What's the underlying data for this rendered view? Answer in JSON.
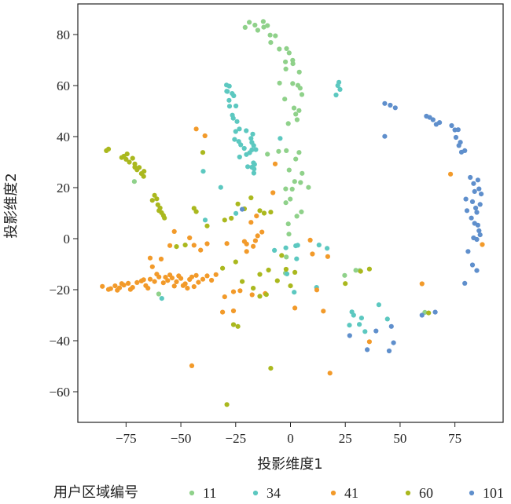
{
  "chart_data": {
    "type": "scatter",
    "xlabel": "投影维度1",
    "ylabel": "投影维度2",
    "xlim": [
      -97,
      97
    ],
    "ylim": [
      -72,
      92
    ],
    "xticks": [
      -75,
      -50,
      -25,
      0,
      25,
      50,
      75
    ],
    "yticks": [
      -60,
      -40,
      -20,
      0,
      20,
      40,
      60,
      80
    ],
    "xtick_labels": [
      "−75",
      "−50",
      "−25",
      "0",
      "25",
      "50",
      "75"
    ],
    "ytick_labels": [
      "−60",
      "−40",
      "−20",
      "0",
      "20",
      "40",
      "60",
      "80"
    ],
    "grid": false,
    "legend": {
      "title": "用户区域编号",
      "placement": "bottom"
    },
    "series": [
      {
        "name": "11",
        "color": "#8fd18a",
        "points": [
          [
            -10.5,
            83.5
          ],
          [
            -14.9,
            81.7
          ],
          [
            -16.2,
            83.7
          ],
          [
            -9.3,
            79.8
          ],
          [
            -20.7,
            82.8
          ],
          [
            -12.4,
            85.1
          ],
          [
            -0.6,
            72.8
          ],
          [
            1.0,
            69.9
          ],
          [
            -1.8,
            74.5
          ],
          [
            -9.0,
            76.9
          ],
          [
            1.1,
            68.6
          ],
          [
            4.4,
            59.0
          ],
          [
            3.9,
            50.2
          ],
          [
            -2.1,
            66.5
          ],
          [
            -6.9,
            79.5
          ],
          [
            -5.1,
            74.3
          ],
          [
            -2.3,
            69.3
          ],
          [
            5.2,
            56.5
          ],
          [
            1.6,
            51.2
          ],
          [
            4.0,
            65.3
          ],
          [
            3.4,
            60.1
          ],
          [
            -12.2,
            82.9
          ],
          [
            -18.8,
            84.8
          ],
          [
            -2.6,
            54.7
          ],
          [
            -5.0,
            61.0
          ],
          [
            1.0,
            60.8
          ],
          [
            3.0,
            46.6
          ],
          [
            2.4,
            48.8
          ],
          [
            3.9,
            33.8
          ],
          [
            -1.9,
            34.5
          ],
          [
            -5.4,
            34.2
          ],
          [
            -1.0,
            45.1
          ],
          [
            5.3,
            25.6
          ],
          [
            2.4,
            31.2
          ],
          [
            -0.6,
            26.9
          ],
          [
            4.6,
            22.0
          ],
          [
            1.9,
            22.4
          ],
          [
            -2.2,
            19.5
          ],
          [
            -2.1,
            14.1
          ],
          [
            -0.1,
            15.5
          ],
          [
            8.2,
            20.1
          ],
          [
            0.8,
            19.4
          ],
          [
            5.0,
            10.5
          ],
          [
            -1.0,
            5.8
          ],
          [
            2.9,
            8.8
          ],
          [
            -0.7,
            1.8
          ],
          [
            -1.9,
            -7.2
          ],
          [
            -2.3,
            -13.5
          ],
          [
            24.7,
            -14.4
          ],
          [
            31.6,
            -12.5
          ],
          [
            29.8,
            -12.4
          ],
          [
            61.3,
            -28.9
          ],
          [
            -60.1,
            -21.7
          ],
          [
            -71.2,
            22.4
          ],
          [
            -10.5,
            33.1
          ]
        ]
      },
      {
        "name": "34",
        "color": "#5cc8c0",
        "points": [
          [
            -29.2,
            60.2
          ],
          [
            -29.1,
            57.8
          ],
          [
            -28.0,
            54.2
          ],
          [
            -27.8,
            51.9
          ],
          [
            -26.5,
            48.4
          ],
          [
            -24.4,
            45.9
          ],
          [
            -25.0,
            42.0
          ],
          [
            -25.5,
            38.9
          ],
          [
            -23.6,
            38.1
          ],
          [
            -22.7,
            36.8
          ],
          [
            -18.6,
            33.7
          ],
          [
            -16.8,
            36.5
          ],
          [
            -15.8,
            34.9
          ],
          [
            -18.0,
            39.3
          ],
          [
            -17.2,
            41.0
          ],
          [
            -20.1,
            33.0
          ],
          [
            -19.5,
            28.2
          ],
          [
            -16.9,
            29.7
          ],
          [
            -17.6,
            28.0
          ],
          [
            -23.2,
            32.0
          ],
          [
            -17.6,
            34.8
          ],
          [
            -17.6,
            37.7
          ],
          [
            -25.9,
            56.0
          ],
          [
            -24.9,
            52.0
          ],
          [
            -26.6,
            56.9
          ],
          [
            -27.9,
            59.8
          ],
          [
            -20.2,
            42.3
          ],
          [
            -16.4,
            29.1
          ],
          [
            -16.7,
            25.7
          ],
          [
            -21.1,
            35.4
          ],
          [
            -16.6,
            27.3
          ],
          [
            -23.3,
            43.0
          ],
          [
            -28.8,
            57.7
          ],
          [
            -26.1,
            47.2
          ],
          [
            22.1,
            61.3
          ],
          [
            20.8,
            56.3
          ],
          [
            21.6,
            60.0
          ],
          [
            22.6,
            58.5
          ],
          [
            3.3,
            -2.6
          ],
          [
            13.0,
            -2.5
          ],
          [
            2.4,
            -2.8
          ],
          [
            -24.9,
            9.9
          ],
          [
            -4.7,
            39.3
          ],
          [
            -39.8,
            26.4
          ],
          [
            -31.8,
            20.1
          ],
          [
            -38.9,
            7.3
          ],
          [
            -58.7,
            -23.4
          ],
          [
            26.9,
            -33.9
          ],
          [
            28.8,
            -30.0
          ],
          [
            28.0,
            -28.7
          ],
          [
            31.4,
            -33.6
          ],
          [
            32.4,
            -31.1
          ],
          [
            40.3,
            -25.9
          ],
          [
            44.2,
            -31.5
          ],
          [
            34.0,
            -36.4
          ],
          [
            1.7,
            -21.0
          ],
          [
            -2.1,
            -3.6
          ],
          [
            2.8,
            -7.9
          ],
          [
            -7.3,
            -4.6
          ],
          [
            -1.6,
            -13.8
          ],
          [
            16.7,
            -3.8
          ],
          [
            11.9,
            -19.1
          ]
        ]
      },
      {
        "name": "41",
        "color": "#f29a2a",
        "points": [
          [
            -85.8,
            -18.7
          ],
          [
            -83.0,
            -19.9
          ],
          [
            -80.0,
            -18.5
          ],
          [
            -78.0,
            -19.3
          ],
          [
            -76.0,
            -18.2
          ],
          [
            -74.0,
            -17.5
          ],
          [
            -72.0,
            -19.1
          ],
          [
            -70.0,
            -17.2
          ],
          [
            -68.0,
            -16.6
          ],
          [
            -66.0,
            -18.4
          ],
          [
            -64.0,
            -15.9
          ],
          [
            -62.0,
            -16.8
          ],
          [
            -60.0,
            -15.0
          ],
          [
            -58.0,
            -17.3
          ],
          [
            -56.0,
            -16.4
          ],
          [
            -54.0,
            -15.4
          ],
          [
            -52.0,
            -16.9
          ],
          [
            -50.0,
            -15.6
          ],
          [
            -48.0,
            -17.7
          ],
          [
            -46.0,
            -16.0
          ],
          [
            -44.0,
            -18.8
          ],
          [
            -42.0,
            -17.1
          ],
          [
            -40.0,
            -15.9
          ],
          [
            -38.0,
            -14.6
          ],
          [
            -36.0,
            -16.3
          ],
          [
            -34.0,
            -14.1
          ],
          [
            -55.0,
            -14.2
          ],
          [
            -57.0,
            -15.1
          ],
          [
            -61.0,
            -13.9
          ],
          [
            -63.0,
            -11.0
          ],
          [
            -64.0,
            -7.6
          ],
          [
            -59.0,
            -8.0
          ],
          [
            -67.0,
            -16.1
          ],
          [
            -73.0,
            -19.9
          ],
          [
            -77.0,
            -17.6
          ],
          [
            -79.0,
            -20.2
          ],
          [
            -82.0,
            -19.6
          ],
          [
            -65.0,
            -19.4
          ],
          [
            -53.0,
            -18.6
          ],
          [
            -49.0,
            -18.4
          ],
          [
            -45.0,
            -15.0
          ],
          [
            -47.0,
            -19.4
          ],
          [
            -43.0,
            -14.4
          ],
          [
            -51.0,
            -14.6
          ],
          [
            -38.0,
            -2.0
          ],
          [
            -41.0,
            -4.5
          ],
          [
            -44.0,
            -2.6
          ],
          [
            -55.0,
            -2.7
          ],
          [
            -53.0,
            2.8
          ],
          [
            -46.0,
            0.3
          ],
          [
            -29.0,
            -1.9
          ],
          [
            -21.0,
            -1.1
          ],
          [
            -20.0,
            -2.1
          ],
          [
            -16.0,
            -0.8
          ],
          [
            -15.0,
            1.1
          ],
          [
            -17.0,
            -3.0
          ],
          [
            -20.0,
            -5.0
          ],
          [
            -13.0,
            2.6
          ],
          [
            -18.0,
            6.4
          ],
          [
            -15.5,
            8.9
          ],
          [
            -26.0,
            -20.8
          ],
          [
            -30.0,
            -22.8
          ],
          [
            -26.0,
            -28.3
          ],
          [
            -31.0,
            -28.8
          ],
          [
            -45.0,
            -49.8
          ],
          [
            -7.0,
            29.3
          ],
          [
            -8.0,
            18.0
          ],
          [
            -43.0,
            43.0
          ],
          [
            -39.0,
            40.3
          ],
          [
            2.0,
            -27.2
          ],
          [
            9.0,
            -0.6
          ],
          [
            10.0,
            -6.0
          ],
          [
            17.0,
            -7.0
          ],
          [
            12.0,
            -20.1
          ],
          [
            15.0,
            -28.4
          ],
          [
            18.0,
            -52.7
          ],
          [
            36.0,
            -40.4
          ],
          [
            60.0,
            -17.7
          ],
          [
            73.0,
            25.3
          ],
          [
            87.5,
            -2.3
          ],
          [
            -23.0,
            -20.4
          ],
          [
            -17.5,
            -22.0
          ],
          [
            -11.5,
            -21.5
          ]
        ]
      },
      {
        "name": "60",
        "color": "#aab81e",
        "points": [
          [
            -84.0,
            34.5
          ],
          [
            -83.0,
            35.1
          ],
          [
            -77.0,
            31.8
          ],
          [
            -76.0,
            32.3
          ],
          [
            -75.0,
            31.1
          ],
          [
            -74.5,
            33.2
          ],
          [
            -73.5,
            30.0
          ],
          [
            -72.0,
            31.5
          ],
          [
            -71.0,
            29.3
          ],
          [
            -70.0,
            27.0
          ],
          [
            -69.0,
            27.9
          ],
          [
            -68.0,
            25.5
          ],
          [
            -67.0,
            24.4
          ],
          [
            -66.8,
            26.4
          ],
          [
            -63.0,
            15.0
          ],
          [
            -62.0,
            17.0
          ],
          [
            -61.0,
            15.6
          ],
          [
            -60.5,
            13.3
          ],
          [
            -59.5,
            12.0
          ],
          [
            -58.8,
            10.2
          ],
          [
            -58.0,
            9.1
          ],
          [
            -57.5,
            8.1
          ],
          [
            -44.0,
            11.9
          ],
          [
            -43.0,
            10.6
          ],
          [
            -40.0,
            33.8
          ],
          [
            -30.0,
            7.3
          ],
          [
            -27.0,
            8.0
          ],
          [
            -24.0,
            13.6
          ],
          [
            -21.0,
            11.7
          ],
          [
            -18.0,
            16.0
          ],
          [
            -14.0,
            11.0
          ],
          [
            -12.0,
            10.0
          ],
          [
            -9.0,
            10.4
          ],
          [
            -52.0,
            -3.1
          ],
          [
            -31.0,
            -11.6
          ],
          [
            -25.0,
            -9.1
          ],
          [
            -22.0,
            -16.8
          ],
          [
            -17.0,
            -19.4
          ],
          [
            -14.0,
            -22.6
          ],
          [
            -11.0,
            -21.9
          ],
          [
            -14.0,
            -14.0
          ],
          [
            -10.0,
            -12.3
          ],
          [
            -4.0,
            -6.6
          ],
          [
            -6.0,
            -16.5
          ],
          [
            -2.0,
            -12.0
          ],
          [
            0.0,
            -18.5
          ],
          [
            2.0,
            -13.2
          ],
          [
            -26.0,
            -33.7
          ],
          [
            -24.0,
            -34.4
          ],
          [
            -29.0,
            -65.0
          ],
          [
            -9.0,
            -50.8
          ],
          [
            25.0,
            -17.6
          ],
          [
            32.0,
            -12.8
          ],
          [
            36.0,
            -11.9
          ],
          [
            63.0,
            -29.1
          ],
          [
            -71.0,
            28.0
          ],
          [
            -60.0,
            11.0
          ],
          [
            -38.0,
            5.0
          ],
          [
            -48.0,
            -2.5
          ]
        ]
      },
      {
        "name": "101",
        "color": "#5f8fcc",
        "points": [
          [
            43.0,
            53.0
          ],
          [
            45.5,
            52.3
          ],
          [
            47.8,
            51.3
          ],
          [
            43.0,
            40.1
          ],
          [
            62.0,
            48.0
          ],
          [
            63.5,
            47.5
          ],
          [
            65.0,
            46.6
          ],
          [
            66.5,
            44.8
          ],
          [
            68.0,
            45.5
          ],
          [
            73.5,
            44.3
          ],
          [
            75.0,
            42.6
          ],
          [
            76.5,
            42.7
          ],
          [
            75.5,
            39.7
          ],
          [
            77.5,
            37.8
          ],
          [
            76.8,
            36.5
          ],
          [
            78.0,
            33.9
          ],
          [
            79.5,
            34.5
          ],
          [
            80.0,
            15.5
          ],
          [
            80.5,
            11.0
          ],
          [
            82.0,
            24.0
          ],
          [
            83.5,
            21.6
          ],
          [
            84.0,
            18.5
          ],
          [
            85.5,
            23.0
          ],
          [
            86.0,
            19.5
          ],
          [
            87.0,
            17.5
          ],
          [
            83.0,
            14.5
          ],
          [
            84.5,
            12.0
          ],
          [
            85.0,
            10.3
          ],
          [
            86.5,
            13.4
          ],
          [
            82.5,
            8.1
          ],
          [
            84.0,
            6.0
          ],
          [
            85.5,
            5.3
          ],
          [
            86.0,
            3.1
          ],
          [
            83.5,
            0.3
          ],
          [
            85.0,
            -0.3
          ],
          [
            86.5,
            1.5
          ],
          [
            83.0,
            -10.3
          ],
          [
            81.0,
            -5.0
          ],
          [
            85.0,
            -12.5
          ],
          [
            79.5,
            -17.5
          ],
          [
            27.0,
            -38.0
          ],
          [
            35.0,
            -43.5
          ],
          [
            46.0,
            -34.4
          ],
          [
            47.0,
            -40.8
          ],
          [
            45.0,
            -44.0
          ],
          [
            39.0,
            -36.2
          ],
          [
            60.0,
            -30.0
          ],
          [
            66.0,
            -28.8
          ],
          [
            -22.0,
            11.5
          ]
        ]
      }
    ]
  }
}
